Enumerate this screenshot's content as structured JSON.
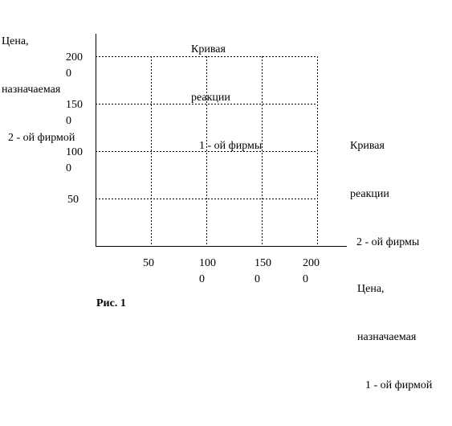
{
  "y_axis_label": [
    "Цена,",
    "назначаемая",
    "2 - ой фирмой"
  ],
  "curve_1_label": [
    "Кривая",
    "реакции",
    "1 - ой фирмы"
  ],
  "curve_2_label": [
    "Кривая",
    "реакции",
    "2 - ой фирмы"
  ],
  "x_axis_label": [
    "Цена,",
    "назначаемая",
    "1 - ой фирмой"
  ],
  "y_tick_labels": [
    "50",
    "1000",
    "1500",
    "2000"
  ],
  "x_tick_labels": [
    "50",
    "1000",
    "1500",
    "2000"
  ],
  "caption": "Рис. 1"
}
